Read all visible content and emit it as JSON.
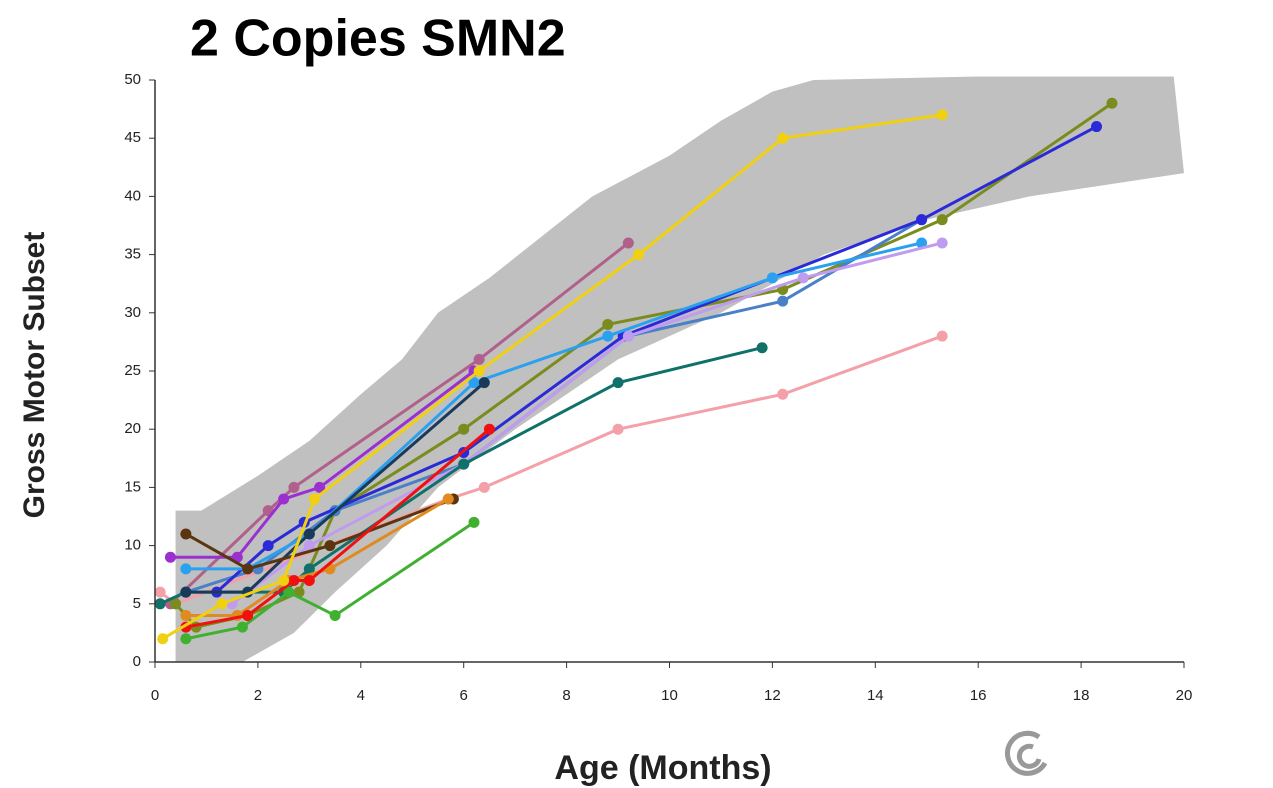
{
  "chart_data": {
    "type": "line",
    "title": "2 Copies SMN2",
    "x_label": "Age (Months)",
    "y_label": "Gross Motor Subset",
    "xlim": [
      0,
      20
    ],
    "xticks": [
      0,
      2,
      4,
      6,
      8,
      10,
      12,
      14,
      16,
      18,
      20
    ],
    "ylim": [
      0,
      50
    ],
    "yticks": [
      0,
      5,
      10,
      15,
      20,
      25,
      30,
      35,
      40,
      45,
      50
    ],
    "band": {
      "color": "#c0c0c0",
      "upper": {
        "x": [
          0.4,
          0.9,
          2,
          3,
          4,
          4.8,
          5.5,
          6.5,
          7.5,
          8.5,
          10,
          11,
          12,
          12.8,
          16,
          19.8,
          20
        ],
        "y": [
          13,
          13,
          16,
          19,
          23,
          26,
          30,
          33,
          36.5,
          40,
          43.5,
          46.5,
          49,
          50,
          50.3,
          50.3,
          42
        ]
      },
      "lower": {
        "x": [
          0.4,
          1.7,
          2.7,
          3.5,
          4.5,
          5.5,
          7,
          9,
          11,
          13,
          15,
          17,
          20
        ],
        "y": [
          0,
          0,
          2.5,
          6,
          10,
          15,
          20,
          26,
          30,
          35,
          38,
          40,
          42
        ]
      }
    },
    "series": [
      {
        "color": "#f4a0a8",
        "x": [
          0.1,
          0.4,
          5.7,
          6.4,
          9,
          12.2,
          15.3
        ],
        "values": [
          6,
          5,
          14,
          15,
          20,
          23,
          28
        ]
      },
      {
        "color": "#b0608a",
        "x": [
          0.3,
          2.2,
          2.7,
          6.3,
          9.2
        ],
        "values": [
          5,
          13,
          15,
          26,
          36
        ]
      },
      {
        "color": "#9b30d0",
        "x": [
          0.3,
          1.6,
          2.5,
          3.2,
          6.2
        ],
        "values": [
          9,
          9,
          14,
          15,
          25
        ]
      },
      {
        "color": "#7a8c1e",
        "x": [
          0.4,
          0.8,
          1.8,
          2.8,
          3.5,
          6,
          8.8,
          12.2,
          15.3,
          18.6
        ],
        "values": [
          5,
          3,
          4,
          6,
          13,
          20,
          29,
          32,
          38,
          48
        ]
      },
      {
        "color": "#4a80c8",
        "x": [
          0.6,
          2,
          3.5,
          6,
          9.2,
          12.2,
          14.9
        ],
        "values": [
          6,
          8,
          13,
          17,
          28,
          31,
          38
        ]
      },
      {
        "color": "#2a2ad8",
        "x": [
          1.2,
          2.2,
          2.9,
          6,
          9.1,
          14.9,
          18.3
        ],
        "values": [
          6,
          10,
          12,
          18,
          28,
          38,
          46
        ]
      },
      {
        "color": "#2aa0f0",
        "x": [
          0.6,
          1.8,
          3,
          6.2,
          8.8,
          12,
          14.9
        ],
        "values": [
          8,
          8,
          11,
          24,
          28,
          33,
          36
        ]
      },
      {
        "color": "#c09cf0",
        "x": [
          1.5,
          3,
          6,
          9.2,
          12.6,
          15.3
        ],
        "values": [
          5,
          10,
          17,
          28,
          33,
          36
        ]
      },
      {
        "color": "#10706a",
        "x": [
          0.1,
          0.6,
          2.5,
          3,
          6,
          9,
          11.8
        ],
        "values": [
          5,
          6,
          6,
          8,
          17,
          24,
          27
        ]
      },
      {
        "color": "#1a3a5a",
        "x": [
          0.6,
          1.8,
          3,
          6.4
        ],
        "values": [
          6,
          6,
          11,
          24
        ]
      },
      {
        "color": "#5a3510",
        "x": [
          0.6,
          1.8,
          3.4,
          5.8
        ],
        "values": [
          11,
          8,
          10,
          14
        ]
      },
      {
        "color": "#e08a20",
        "x": [
          0.6,
          1.6,
          2.6,
          3.4,
          5.7
        ],
        "values": [
          4,
          4,
          7,
          8,
          14
        ]
      },
      {
        "color": "#40b030",
        "x": [
          0.6,
          1.7,
          2.6,
          3.5,
          6.2
        ],
        "values": [
          2,
          3,
          6,
          4,
          12
        ]
      },
      {
        "color": "#f01010",
        "x": [
          0.6,
          1.8,
          2.7,
          3,
          6.5
        ],
        "values": [
          3,
          4,
          7,
          7,
          20
        ]
      },
      {
        "color": "#f0d010",
        "x": [
          0.15,
          1.3,
          2.5,
          3.1,
          6.3,
          9.4,
          12.2,
          15.3
        ],
        "values": [
          2,
          5,
          7,
          14,
          25,
          35,
          45,
          47
        ]
      }
    ]
  }
}
